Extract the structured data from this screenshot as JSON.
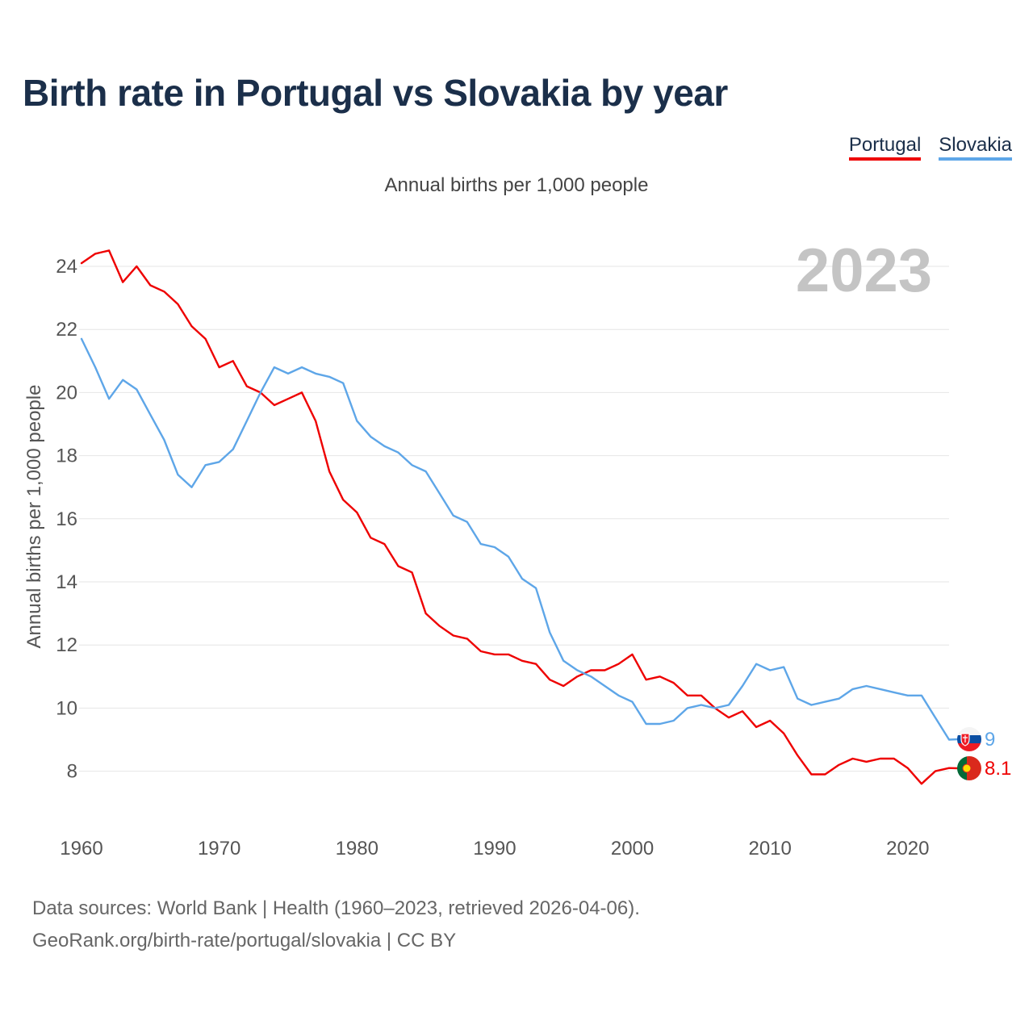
{
  "title": "Birth rate in Portugal vs Slovakia by year",
  "subtitle": "Annual births per 1,000 people",
  "year_label": "2023",
  "footer": {
    "line1": "Data sources: World Bank | Health (1960–2023, retrieved 2026-04-06).",
    "line2": "GeoRank.org/birth-rate/portugal/slovakia | CC BY"
  },
  "chart_data": {
    "type": "line",
    "title": "Birth rate in Portugal vs Slovakia by year",
    "xlabel": "",
    "ylabel": "Annual births per 1,000 people",
    "xlim": [
      1960,
      2024
    ],
    "ylim": [
      6.5,
      25
    ],
    "x_ticks": [
      1960,
      1970,
      1980,
      1990,
      2000,
      2010,
      2020
    ],
    "y_ticks": [
      8,
      10,
      12,
      14,
      16,
      18,
      20,
      22,
      24
    ],
    "x": [
      1960,
      1961,
      1962,
      1963,
      1964,
      1965,
      1966,
      1967,
      1968,
      1969,
      1970,
      1971,
      1972,
      1973,
      1974,
      1975,
      1976,
      1977,
      1978,
      1979,
      1980,
      1981,
      1982,
      1983,
      1984,
      1985,
      1986,
      1987,
      1988,
      1989,
      1990,
      1991,
      1992,
      1993,
      1994,
      1995,
      1996,
      1997,
      1998,
      1999,
      2000,
      2001,
      2002,
      2003,
      2004,
      2005,
      2006,
      2007,
      2008,
      2009,
      2010,
      2011,
      2012,
      2013,
      2014,
      2015,
      2016,
      2017,
      2018,
      2019,
      2020,
      2021,
      2022,
      2023
    ],
    "series": [
      {
        "name": "Portugal",
        "color": "#ee0000",
        "end_label": "8.1",
        "flag": "portugal-flag",
        "values": [
          24.1,
          24.4,
          24.5,
          23.5,
          24.0,
          23.4,
          23.2,
          22.8,
          22.1,
          21.7,
          20.8,
          21.0,
          20.2,
          20.0,
          19.6,
          19.8,
          20.0,
          19.1,
          17.5,
          16.6,
          16.2,
          15.4,
          15.2,
          14.5,
          14.3,
          13.0,
          12.6,
          12.3,
          12.2,
          11.8,
          11.7,
          11.7,
          11.5,
          11.4,
          10.9,
          10.7,
          11.0,
          11.2,
          11.2,
          11.4,
          11.7,
          10.9,
          11.0,
          10.8,
          10.4,
          10.4,
          10.0,
          9.7,
          9.9,
          9.4,
          9.6,
          9.2,
          8.5,
          7.9,
          7.9,
          8.2,
          8.4,
          8.3,
          8.4,
          8.4,
          8.1,
          7.6,
          8.0,
          8.1
        ]
      },
      {
        "name": "Slovakia",
        "color": "#5ea6e8",
        "end_label": "9",
        "flag": "slovakia-flag",
        "values": [
          21.7,
          20.8,
          19.8,
          20.4,
          20.1,
          19.3,
          18.5,
          17.4,
          17.0,
          17.7,
          17.8,
          18.2,
          19.1,
          20.0,
          20.8,
          20.6,
          20.8,
          20.6,
          20.5,
          20.3,
          19.1,
          18.6,
          18.3,
          18.1,
          17.7,
          17.5,
          16.8,
          16.1,
          15.9,
          15.2,
          15.1,
          14.8,
          14.1,
          13.8,
          12.4,
          11.5,
          11.2,
          11.0,
          10.7,
          10.4,
          10.2,
          9.5,
          9.5,
          9.6,
          10.0,
          10.1,
          10.0,
          10.1,
          10.7,
          11.4,
          11.2,
          11.3,
          10.3,
          10.1,
          10.2,
          10.3,
          10.6,
          10.7,
          10.6,
          10.5,
          10.4,
          10.4,
          9.7,
          9.0
        ]
      }
    ]
  }
}
